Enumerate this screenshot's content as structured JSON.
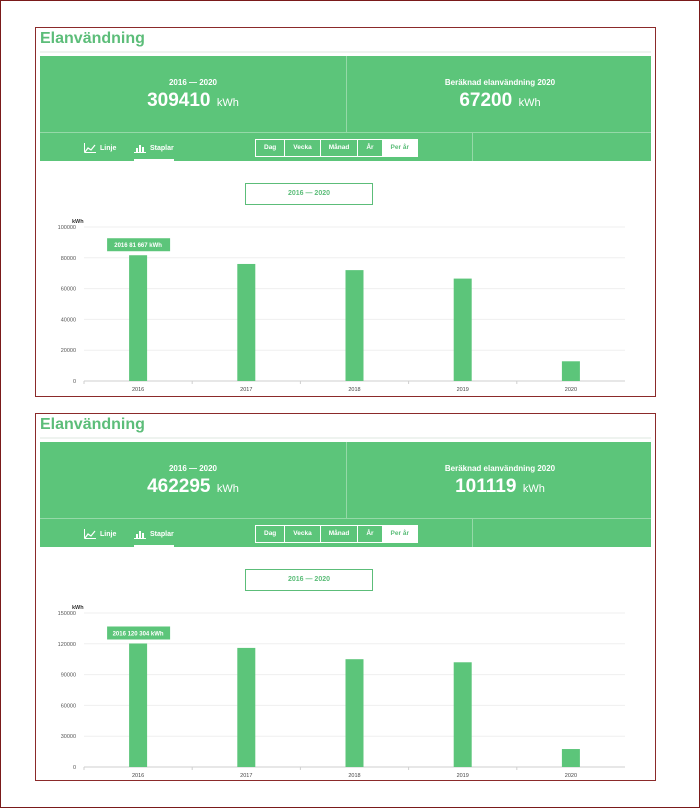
{
  "panels": [
    {
      "title": "Elanvändning",
      "stats": {
        "left_label": "2016 — 2020",
        "left_value": "309410",
        "right_label": "Beräknad elanvändning 2020",
        "right_value": "67200",
        "unit": "kWh"
      },
      "toolbar": {
        "views": [
          {
            "label": "Linje",
            "icon": "line-chart-icon",
            "active": false
          },
          {
            "label": "Staplar",
            "icon": "bar-chart-icon",
            "active": true
          }
        ],
        "periods": [
          {
            "label": "Dag",
            "selected": false
          },
          {
            "label": "Vecka",
            "selected": false
          },
          {
            "label": "Månad",
            "selected": false
          },
          {
            "label": "År",
            "selected": false
          },
          {
            "label": "Per år",
            "selected": true
          }
        ]
      },
      "range_label": "2016 — 2020"
    },
    {
      "title": "Elanvändning",
      "stats": {
        "left_label": "2016 — 2020",
        "left_value": "462295",
        "right_label": "Beräknad elanvändning 2020",
        "right_value": "101119",
        "unit": "kWh"
      },
      "toolbar": {
        "views": [
          {
            "label": "Linje",
            "icon": "line-chart-icon",
            "active": false
          },
          {
            "label": "Staplar",
            "icon": "bar-chart-icon",
            "active": true
          }
        ],
        "periods": [
          {
            "label": "Dag",
            "selected": false
          },
          {
            "label": "Vecka",
            "selected": false
          },
          {
            "label": "Månad",
            "selected": false
          },
          {
            "label": "År",
            "selected": false
          },
          {
            "label": "Per år",
            "selected": true
          }
        ]
      },
      "range_label": "2016 — 2020"
    }
  ],
  "colors": {
    "accent": "#5cc57a",
    "frame": "#8b2a2a"
  },
  "chart_data": [
    {
      "type": "bar",
      "categories": [
        "2016",
        "2017",
        "2018",
        "2019",
        "2020"
      ],
      "values": [
        81667,
        76000,
        72000,
        66500,
        12800
      ],
      "ylabel": "kWh",
      "ylim": [
        0,
        100000
      ],
      "yticks": [
        0,
        20000,
        40000,
        60000,
        80000,
        100000
      ],
      "tooltip": "2016 81 667 kWh",
      "grid": true
    },
    {
      "type": "bar",
      "categories": [
        "2016",
        "2017",
        "2018",
        "2019",
        "2020"
      ],
      "values": [
        120304,
        116000,
        105000,
        102000,
        17500
      ],
      "ylabel": "kWh",
      "ylim": [
        0,
        150000
      ],
      "yticks": [
        0,
        30000,
        60000,
        90000,
        120000,
        150000
      ],
      "tooltip": "2016 120 304 kWh",
      "grid": true
    }
  ]
}
